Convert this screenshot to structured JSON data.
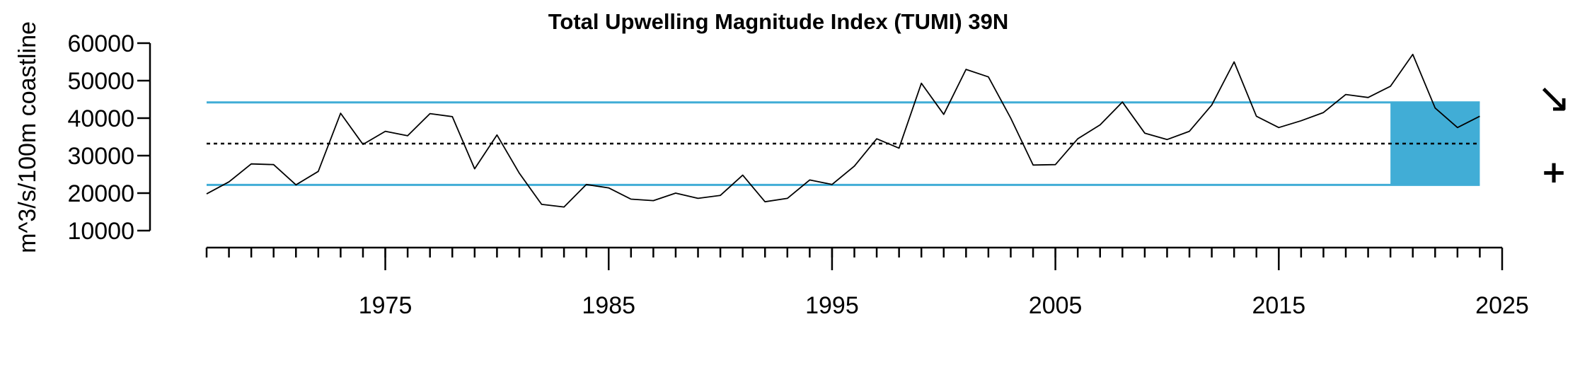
{
  "chart_data": {
    "type": "line",
    "title": "Total Upwelling Magnitude Index (TUMI) 39N",
    "xlabel": "",
    "ylabel": "m^3/s/100m coastline",
    "xlim": [
      1967,
      2025
    ],
    "ylim": [
      10000,
      60000
    ],
    "y_ticks": [
      10000,
      20000,
      30000,
      40000,
      50000,
      60000
    ],
    "y_tick_labels": [
      "10000",
      "20000",
      "30000",
      "40000",
      "50000",
      "60000"
    ],
    "x_labeled_ticks": [
      1975,
      1985,
      1995,
      2005,
      2015,
      2025
    ],
    "x_tick_labels": [
      "1975",
      "1985",
      "1995",
      "2005",
      "2015",
      "2025"
    ],
    "x_minor_ticks": {
      "from": 1967,
      "to": 2024,
      "step": 1
    },
    "series": [
      {
        "x": [
          1967,
          1968,
          1969,
          1970,
          1971,
          1972,
          1973,
          1974,
          1975,
          1976,
          1977,
          1978,
          1979,
          1980,
          1981,
          1982,
          1983,
          1984,
          1985,
          1986,
          1987,
          1988,
          1989,
          1990,
          1991,
          1992,
          1993,
          1994,
          1995,
          1996,
          1997,
          1998,
          1999,
          2000,
          2001,
          2002,
          2003,
          2004,
          2005,
          2006,
          2007,
          2008,
          2009,
          2010,
          2011,
          2012,
          2013,
          2014,
          2015,
          2016,
          2017,
          2018,
          2019,
          2020,
          2021,
          2022,
          2023,
          2024
        ],
        "values": [
          19800,
          23000,
          27800,
          27600,
          22200,
          25800,
          41300,
          33000,
          36500,
          35300,
          41200,
          40400,
          26500,
          35500,
          25300,
          17000,
          16300,
          22300,
          21400,
          18400,
          18000,
          20000,
          18600,
          19400,
          24800,
          17700,
          18600,
          23500,
          22300,
          27200,
          34500,
          32000,
          49300,
          41000,
          53000,
          51000,
          40000,
          27500,
          27600,
          34500,
          38200,
          44300,
          36000,
          34300,
          36500,
          43500,
          55000,
          40500,
          37500,
          39300,
          41500,
          46300,
          45500,
          48500,
          57000,
          42700,
          37500,
          40500
        ]
      }
    ],
    "reference_lines": {
      "mean": 33200,
      "upper_sd": 44200,
      "lower_sd": 22200
    },
    "shaded_period": {
      "from": 2020,
      "to": 2024
    },
    "trend_indicators": {
      "trend_symbol": "↘",
      "mean_symbol": "+"
    },
    "colors": {
      "line": "#000000",
      "sd_lines": "#41ADD6",
      "shade": "#41ADD6",
      "mean_line": "#000000",
      "axis": "#000000"
    },
    "grid": false,
    "legend": "none"
  }
}
